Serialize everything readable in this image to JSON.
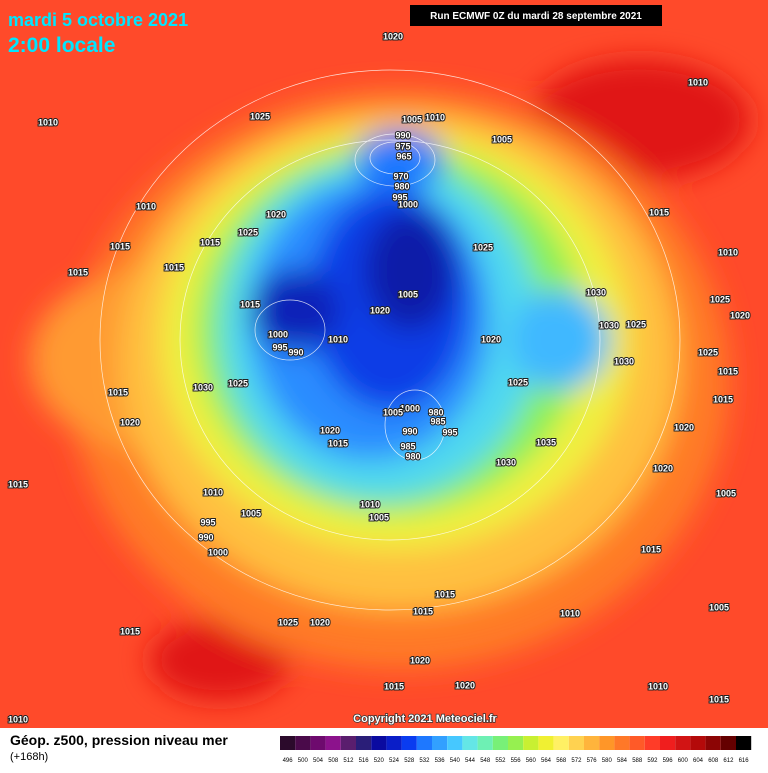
{
  "header": {
    "date": "mardi 5 octobre 2021",
    "time": "2:00 locale",
    "run": "Run ECMWF 0Z du mardi 28 septembre 2021"
  },
  "copyright": "Copyright 2021 Meteociel.fr",
  "footer": {
    "label": "Géop. z500, pression niveau mer",
    "lead": "(+168h)"
  },
  "scale": {
    "values": [
      496,
      500,
      504,
      508,
      512,
      516,
      520,
      524,
      528,
      532,
      536,
      540,
      544,
      548,
      552,
      556,
      560,
      564,
      568,
      572,
      576,
      580,
      584,
      588,
      592,
      596,
      600,
      604,
      608,
      612,
      616
    ],
    "colors": [
      "#2b0a2b",
      "#4a0a4a",
      "#6e0a6e",
      "#8c128c",
      "#5a1e6e",
      "#2a1e78",
      "#0a0aa0",
      "#0a1ec8",
      "#0a3cf0",
      "#1e78ff",
      "#32a0ff",
      "#46c8ff",
      "#64e6e6",
      "#6ef0b4",
      "#78f078",
      "#96f050",
      "#c8f032",
      "#f0f032",
      "#fff064",
      "#ffd250",
      "#ffb43c",
      "#ff9628",
      "#ff7828",
      "#ff5a28",
      "#ff3c28",
      "#f01e1e",
      "#d21414",
      "#b40a0a",
      "#8c0505",
      "#640000",
      "#000000"
    ]
  },
  "isobar_labels": [
    "1020",
    "1010",
    "1010",
    "1025",
    "1005",
    "1010",
    "1005",
    "990",
    "975",
    "965",
    "970",
    "980",
    "995",
    "1000",
    "1020",
    "1025",
    "1010",
    "1015",
    "1015",
    "1015",
    "1015",
    "1015",
    "1025",
    "1010",
    "1005",
    "1020",
    "1030",
    "1025",
    "1030",
    "1025",
    "1020",
    "1015",
    "1000",
    "995",
    "990",
    "1010",
    "1020",
    "1025",
    "1030",
    "1025",
    "1015",
    "1030",
    "1025",
    "1015",
    "1015",
    "1020",
    "1000",
    "980",
    "985",
    "995",
    "990",
    "985",
    "980",
    "1005",
    "1020",
    "1015",
    "1035",
    "1030",
    "1020",
    "1020",
    "1015",
    "1010",
    "1005",
    "1010",
    "1005",
    "1005",
    "995",
    "990",
    "1000",
    "1015",
    "1015",
    "1015",
    "1010",
    "1005",
    "1015",
    "1025",
    "1020",
    "1020",
    "1015",
    "1020",
    "1010",
    "1010",
    "1015"
  ]
}
